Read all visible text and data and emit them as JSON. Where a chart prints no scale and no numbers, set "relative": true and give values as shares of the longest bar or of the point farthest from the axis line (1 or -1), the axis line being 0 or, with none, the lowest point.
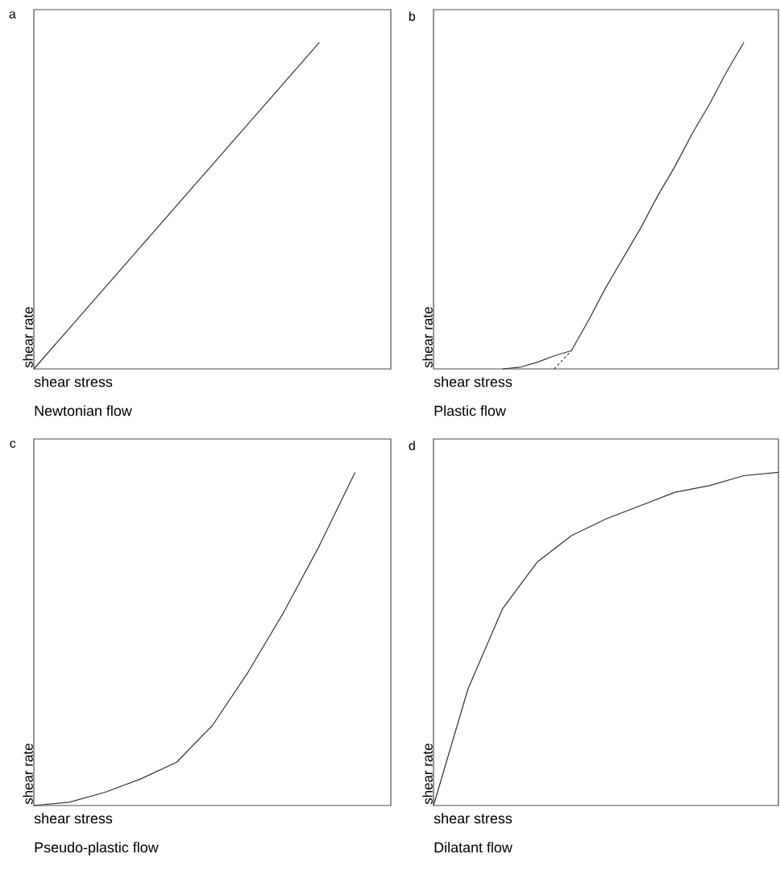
{
  "chart_data": [
    {
      "type": "line",
      "relative": true,
      "title": "Newtonian flow",
      "xlabel": "shear stress",
      "ylabel": "shear rate",
      "annotations": [
        "a"
      ],
      "categories": [
        null,
        null,
        null,
        null,
        null,
        null,
        null,
        null,
        null,
        null,
        null
      ],
      "series": [
        {
          "color": "#333333",
          "values": [
            0,
            0.125,
            0.25,
            0.375,
            0.5,
            0.625,
            0.75,
            0.875,
            1.0,
            null,
            null
          ]
        }
      ]
    },
    {
      "type": "line",
      "relative": true,
      "title": "Plastic flow",
      "xlabel": "shear stress",
      "ylabel": "shear rate",
      "annotations": [
        "b"
      ],
      "categories": [
        null,
        null,
        null,
        null,
        null,
        null,
        null,
        null,
        null,
        null,
        null,
        null,
        null,
        null,
        null,
        null,
        null,
        null,
        null,
        null,
        null
      ],
      "series": [
        {
          "color": "#333333",
          "values": [
            null,
            null,
            null,
            null,
            0,
            0.005,
            0.02,
            0.04,
            0.056,
            0.15,
            0.25,
            0.34,
            0.43,
            0.53,
            0.62,
            0.72,
            0.81,
            0.91,
            1.0,
            null,
            null
          ]
        },
        {
          "color": "#333333",
          "line_style": "dashed",
          "values": [
            null,
            null,
            null,
            null,
            null,
            null,
            null,
            0,
            0.056,
            null,
            null,
            null,
            null,
            null,
            null,
            null,
            null,
            null,
            null,
            null,
            null
          ]
        }
      ]
    },
    {
      "type": "line",
      "relative": true,
      "title": "Pseudo-plastic flow",
      "xlabel": "shear stress",
      "ylabel": "shear rate",
      "annotations": [
        "c"
      ],
      "categories": [
        null,
        null,
        null,
        null,
        null,
        null,
        null,
        null,
        null,
        null,
        null
      ],
      "series": [
        {
          "color": "#333333",
          "values": [
            0,
            0.01,
            0.04,
            0.08,
            0.13,
            0.24,
            0.4,
            0.58,
            0.78,
            1.0,
            null
          ]
        }
      ]
    },
    {
      "type": "line",
      "relative": true,
      "title": "Dilatant flow",
      "xlabel": "shear stress",
      "ylabel": "shear rate",
      "annotations": [
        "d"
      ],
      "categories": [
        null,
        null,
        null,
        null,
        null,
        null,
        null,
        null,
        null,
        null,
        null
      ],
      "series": [
        {
          "color": "#333333",
          "values": [
            0,
            0.35,
            0.59,
            0.73,
            0.81,
            0.86,
            0.9,
            0.94,
            0.96,
            0.99,
            1.0
          ]
        }
      ]
    }
  ]
}
